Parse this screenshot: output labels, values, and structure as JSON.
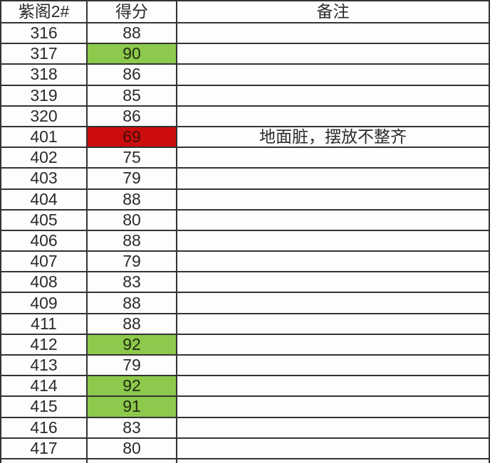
{
  "table": {
    "columns": [
      {
        "key": "room",
        "label": "紫阁2#"
      },
      {
        "key": "score",
        "label": "得分"
      },
      {
        "key": "remark",
        "label": "备注"
      }
    ],
    "rows": [
      {
        "room": "316",
        "score": "88",
        "remark": "",
        "highlight": "none"
      },
      {
        "room": "317",
        "score": "90",
        "remark": "",
        "highlight": "green"
      },
      {
        "room": "318",
        "score": "86",
        "remark": "",
        "highlight": "none"
      },
      {
        "room": "319",
        "score": "85",
        "remark": "",
        "highlight": "none"
      },
      {
        "room": "320",
        "score": "86",
        "remark": "",
        "highlight": "none"
      },
      {
        "room": "401",
        "score": "69",
        "remark": "地面脏，摆放不整齐",
        "highlight": "red"
      },
      {
        "room": "402",
        "score": "75",
        "remark": "",
        "highlight": "none"
      },
      {
        "room": "403",
        "score": "79",
        "remark": "",
        "highlight": "none"
      },
      {
        "room": "404",
        "score": "88",
        "remark": "",
        "highlight": "none"
      },
      {
        "room": "405",
        "score": "80",
        "remark": "",
        "highlight": "none"
      },
      {
        "room": "406",
        "score": "88",
        "remark": "",
        "highlight": "none"
      },
      {
        "room": "407",
        "score": "79",
        "remark": "",
        "highlight": "none"
      },
      {
        "room": "408",
        "score": "83",
        "remark": "",
        "highlight": "none"
      },
      {
        "room": "409",
        "score": "88",
        "remark": "",
        "highlight": "none"
      },
      {
        "room": "411",
        "score": "88",
        "remark": "",
        "highlight": "none"
      },
      {
        "room": "412",
        "score": "92",
        "remark": "",
        "highlight": "green"
      },
      {
        "room": "413",
        "score": "79",
        "remark": "",
        "highlight": "none"
      },
      {
        "room": "414",
        "score": "92",
        "remark": "",
        "highlight": "green"
      },
      {
        "room": "415",
        "score": "91",
        "remark": "",
        "highlight": "green"
      },
      {
        "room": "416",
        "score": "83",
        "remark": "",
        "highlight": "none"
      },
      {
        "room": "417",
        "score": "80",
        "remark": "",
        "highlight": "none"
      }
    ],
    "clipped_empty_row": true
  },
  "colors": {
    "highlight_green": "#8dc94c",
    "highlight_red": "#cc0d0d",
    "border": "#333333",
    "text": "#2b2b2b"
  }
}
